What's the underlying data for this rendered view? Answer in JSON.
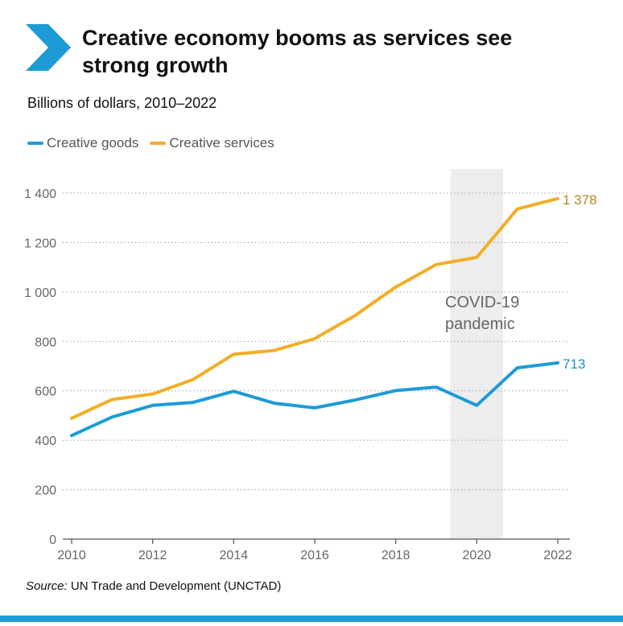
{
  "header": {
    "title": "Creative economy booms as services see strong growth",
    "subtitle": "Billions of dollars, 2010–2022"
  },
  "legend": [
    {
      "label": "Creative goods",
      "color": "#1d9bd7"
    },
    {
      "label": "Creative services",
      "color": "#f2ae28"
    }
  ],
  "chart_data": {
    "type": "line",
    "title": "Creative economy booms as services see strong growth",
    "subtitle": "Billions of dollars, 2010–2022",
    "xlabel": "",
    "ylabel": "",
    "x": [
      2010,
      2011,
      2012,
      2013,
      2014,
      2015,
      2016,
      2017,
      2018,
      2019,
      2020,
      2021,
      2022
    ],
    "xticks": [
      "2010",
      "2012",
      "2014",
      "2016",
      "2018",
      "2020",
      "2022"
    ],
    "yticks": [
      "0",
      "200",
      "400",
      "600",
      "800",
      "1 000",
      "1 200",
      "1 400"
    ],
    "ylim": [
      0,
      1400
    ],
    "xlim": [
      2010,
      2022
    ],
    "grid": "horizontal dotted",
    "legend_position": "top-left",
    "series": [
      {
        "name": "Creative goods",
        "color": "#1d9bd7",
        "values": [
          419,
          494,
          541,
          553,
          598,
          550,
          531,
          563,
          601,
          615,
          541,
          693,
          713
        ],
        "end_label": "713"
      },
      {
        "name": "Creative services",
        "color": "#f2ae28",
        "values": [
          489,
          565,
          587,
          646,
          748,
          763,
          811,
          905,
          1020,
          1111,
          1140,
          1336,
          1378
        ],
        "end_label": "1 378"
      }
    ],
    "annotation": {
      "lines": [
        "COVID-19",
        "pandemic"
      ],
      "x_start": 2019.35,
      "x_end": 2020.65
    }
  },
  "footer": {
    "source_label": "Source:",
    "source_text": "UN Trade and Development (UNCTAD)"
  }
}
